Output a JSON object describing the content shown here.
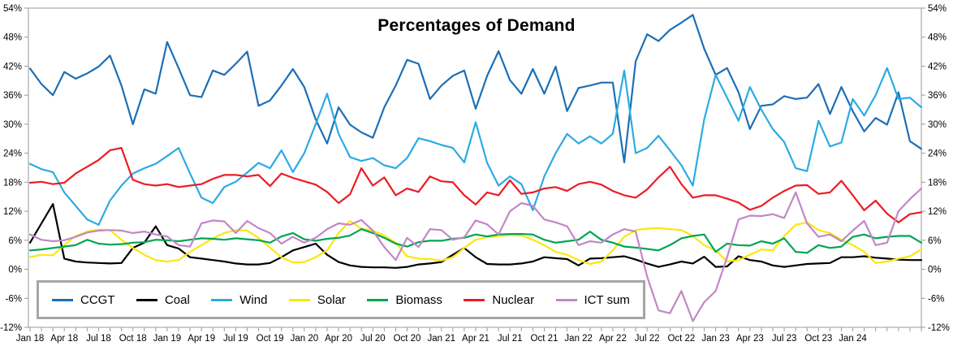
{
  "title": "Percentages of Demand",
  "axes": {
    "y_tick_labels": [
      "54%",
      "48%",
      "42%",
      "36%",
      "30%",
      "24%",
      "18%",
      "12%",
      "6%",
      "0%",
      "-6%",
      "-12%"
    ],
    "x_tick_labels": [
      "Jan 18",
      "Apr 18",
      "Jul 18",
      "Oct 18",
      "Jan 19",
      "Apr 19",
      "Jul 19",
      "Oct 19",
      "Jan 20",
      "Apr 20",
      "Jul 20",
      "Oct 20",
      "Jan 21",
      "Apr 21",
      "Jul 21",
      "Oct 21",
      "Jan 22",
      "Apr 22",
      "Jul 22",
      "Oct 22",
      "Jan 23",
      "Apr 23",
      "Jul 23",
      "Oct 23",
      "Jan 24"
    ],
    "axis_color": "#9a9a9a",
    "label_color": "#000000"
  },
  "chart_data": {
    "type": "line",
    "title": "Percentages of Demand",
    "x_unit": "month",
    "x_start": "Jan 2018",
    "x_end": "Jul 2024",
    "months_per_tick_label": 3,
    "ylim": [
      -12,
      54
    ],
    "y_tick_step": 6,
    "grid": false,
    "legend_position": "bottom-left",
    "x_tick_labels": [
      "Jan 18",
      "Apr 18",
      "Jul 18",
      "Oct 18",
      "Jan 19",
      "Apr 19",
      "Jul 19",
      "Oct 19",
      "Jan 20",
      "Apr 20",
      "Jul 20",
      "Oct 20",
      "Jan 21",
      "Apr 21",
      "Jul 21",
      "Oct 21",
      "Jan 22",
      "Apr 22",
      "Jul 22",
      "Oct 22",
      "Jan 23",
      "Apr 23",
      "Jul 23",
      "Oct 23",
      "Jan 24"
    ],
    "series": [
      {
        "name": "CCGT",
        "color": "#1d6fb5",
        "values": [
          41.5,
          38.3,
          36,
          40.8,
          39.4,
          40.5,
          41.9,
          44.2,
          38,
          30,
          37.2,
          36.3,
          47,
          41.6,
          36,
          35.6,
          41.1,
          40.2,
          42.5,
          45,
          33.8,
          34.9,
          38,
          41.4,
          37.7,
          31,
          26,
          33.5,
          29.9,
          28.3,
          27.2,
          33.5,
          38,
          43.3,
          42.5,
          35.2,
          38,
          40,
          41.1,
          33.2,
          40,
          45.1,
          39.1,
          36.3,
          41.4,
          36.3,
          41.9,
          32.7,
          37.5,
          38,
          38.6,
          38.6,
          22.1,
          43,
          48.6,
          47.2,
          49.5,
          51,
          52.6,
          45.6,
          40.2,
          41.6,
          36.6,
          29,
          33.8,
          34.1,
          35.8,
          35.2,
          35.5,
          38.3,
          32.1,
          37.7,
          32.7,
          28.5,
          31.3,
          29.9,
          36.6,
          26.5,
          24.9
        ]
      },
      {
        "name": "Coal",
        "color": "#000000",
        "values": [
          5.5,
          9.5,
          13.5,
          2.2,
          1.6,
          1.4,
          1.3,
          1.2,
          1.3,
          4.4,
          5.5,
          8.9,
          5,
          4.3,
          2.5,
          2.2,
          1.9,
          1.6,
          1.2,
          1,
          1,
          1.3,
          2.5,
          3.9,
          4.6,
          5.3,
          3,
          1.5,
          0.8,
          0.5,
          0.4,
          0.4,
          0.3,
          0.5,
          1,
          1.2,
          1.5,
          3,
          4.4,
          2.5,
          1.1,
          1,
          1,
          1.2,
          1.6,
          2.5,
          2.3,
          2.1,
          0.8,
          2.2,
          2.3,
          2.5,
          2.7,
          2,
          1.2,
          0.5,
          1,
          1.6,
          1.2,
          2.6,
          0.5,
          0.6,
          2.7,
          1.9,
          1.6,
          0.8,
          0.5,
          0.8,
          1.1,
          1.2,
          1.3,
          2.5,
          2.5,
          2.7,
          2.4,
          2.2,
          2,
          1.9,
          1.9
        ]
      },
      {
        "name": "Wind",
        "color": "#2babe2",
        "values": [
          21.8,
          20.7,
          20.1,
          15.9,
          13.1,
          10.3,
          9.2,
          14.2,
          17.3,
          19.8,
          20.9,
          21.8,
          23.4,
          25.1,
          19.8,
          14.8,
          13.7,
          17,
          18.1,
          20,
          22,
          20.9,
          24.6,
          20.1,
          24,
          30,
          36.3,
          28,
          23.2,
          22.4,
          23,
          21.5,
          20.9,
          23,
          27.1,
          26.5,
          25.7,
          25.1,
          22.1,
          30.4,
          22,
          17.3,
          19.2,
          17.6,
          12.2,
          19.2,
          24,
          28,
          26,
          27.5,
          26,
          28,
          41.1,
          24,
          25.1,
          27.6,
          24.6,
          21.5,
          17.3,
          31,
          40.2,
          35.5,
          30.7,
          37.7,
          33,
          29,
          26.3,
          20.9,
          20.3,
          30.7,
          25.4,
          26.2,
          35.2,
          31.8,
          36,
          41.6,
          35.2,
          35.5,
          33.5
        ]
      },
      {
        "name": "Solar",
        "color": "#fbe70e",
        "values": [
          2.5,
          3,
          2.9,
          5,
          6.9,
          7.8,
          8.2,
          8.1,
          6.1,
          4.4,
          3,
          1.9,
          1.6,
          1.9,
          3.6,
          5,
          6.4,
          7.5,
          8.1,
          8,
          6.5,
          4.5,
          2.5,
          1.4,
          1.5,
          2.5,
          3.9,
          7.5,
          10,
          8.4,
          8,
          7,
          5.5,
          2.7,
          2.2,
          2.1,
          1.8,
          2.5,
          4.4,
          6.1,
          6.6,
          6.9,
          7.1,
          7,
          6.1,
          5,
          3.6,
          3,
          1.9,
          1.1,
          1.6,
          3.9,
          6.7,
          8.1,
          8.4,
          8.5,
          8.3,
          8.1,
          6.9,
          5,
          3.9,
          1.6,
          1.9,
          3,
          4.1,
          3.9,
          6.9,
          9.2,
          9.7,
          8.1,
          7.5,
          6.1,
          5,
          3.6,
          1.3,
          1.6,
          2.2,
          2.7,
          4.1
        ]
      },
      {
        "name": "Biomass",
        "color": "#00a551",
        "values": [
          3.9,
          4.1,
          4.4,
          4.7,
          5,
          6.1,
          5.3,
          5.1,
          5.2,
          5.5,
          5.6,
          6.1,
          6,
          5.8,
          6.1,
          6.4,
          6.3,
          6.1,
          6.4,
          6.2,
          6,
          5.5,
          6.8,
          7.5,
          6.2,
          5.9,
          6.3,
          6.5,
          7,
          8.3,
          7.5,
          6.5,
          5.3,
          4.7,
          5.6,
          5.9,
          5.9,
          6.3,
          6.5,
          7.2,
          6.8,
          7.2,
          7.3,
          7.3,
          7.2,
          6.1,
          5.5,
          5.8,
          6.1,
          7.8,
          6.1,
          5.5,
          4.7,
          4.5,
          4.2,
          3.9,
          5,
          6.4,
          6.9,
          7.2,
          3.6,
          5.3,
          5,
          4.9,
          5.8,
          5.3,
          6.4,
          3.6,
          3.4,
          5,
          4.4,
          4.7,
          6.7,
          7.2,
          6.4,
          6.7,
          6.9,
          6.9,
          5.5
        ]
      },
      {
        "name": "Nuclear",
        "color": "#ed1c24",
        "values": [
          17.9,
          18.1,
          17.6,
          17.9,
          19.8,
          21.2,
          22.6,
          24.6,
          25.1,
          18.5,
          17.6,
          17.3,
          17.6,
          17,
          17.3,
          17.6,
          18.7,
          19.5,
          19.5,
          19.2,
          19.5,
          17.2,
          19.8,
          18.9,
          18.2,
          17.5,
          16,
          13.7,
          15.5,
          20.9,
          17.3,
          19,
          15.3,
          16.7,
          16,
          19.2,
          18.2,
          18,
          15.3,
          13.4,
          15.9,
          15.3,
          18.4,
          15.6,
          15.9,
          16.7,
          17,
          16.2,
          17.6,
          18.1,
          17.5,
          16.2,
          15.3,
          14.8,
          16.5,
          19,
          21.2,
          17.6,
          14.8,
          15.3,
          15.3,
          14.6,
          13.8,
          12.3,
          13.1,
          14.8,
          16.2,
          17.3,
          17.4,
          15.6,
          15.9,
          18.3,
          15.3,
          12.2,
          14.2,
          11.5,
          9.7,
          11.4,
          11.8
        ]
      },
      {
        "name": "ICT sum",
        "color": "#c287c5",
        "values": [
          7.2,
          6.1,
          5.8,
          6,
          6.7,
          7.6,
          8,
          8.1,
          8,
          7.5,
          7.8,
          7.2,
          6.8,
          5,
          4.7,
          9.5,
          10.1,
          9.9,
          7.5,
          10,
          8.5,
          7.5,
          5.3,
          6.7,
          5.5,
          6.5,
          8.3,
          9.5,
          9.2,
          10.2,
          8,
          4.6,
          1.9,
          6.5,
          4.6,
          8.3,
          8.1,
          6.1,
          6.6,
          10.1,
          9.3,
          7.2,
          12,
          13.7,
          13.1,
          10.3,
          9.7,
          8.9,
          5,
          5.8,
          5.5,
          7.2,
          8.3,
          7.8,
          -1.5,
          -8.5,
          -9.1,
          -4.5,
          -10.7,
          -6.8,
          -4.5,
          2.5,
          10.3,
          11.1,
          11,
          11.4,
          10.6,
          15.9,
          9.5,
          6.7,
          7.2,
          5.8,
          8,
          10,
          5,
          5.5,
          12,
          14.5,
          16.7
        ]
      }
    ]
  }
}
